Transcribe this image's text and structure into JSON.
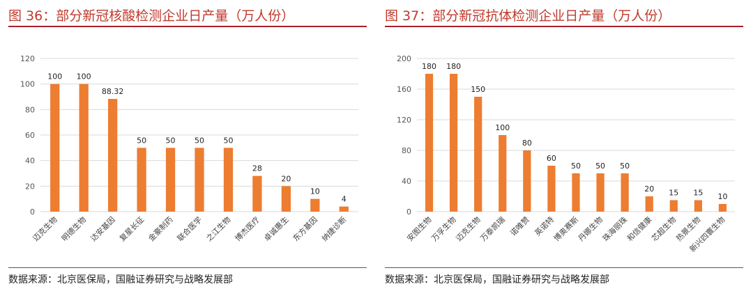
{
  "colors": {
    "bar": "#ed7d31",
    "title": "#c0392b",
    "grid": "#d9d9d9"
  },
  "charts": [
    {
      "title": "图 36：部分新冠核酸检测企业日产量（万人份）",
      "source": "数据来源：北京医保局，国融证券研究与战略发展部",
      "chart_data": {
        "type": "bar",
        "title": "",
        "xlabel": "",
        "ylabel": "",
        "ylim": [
          0,
          120
        ],
        "yticks": [
          "0",
          "20",
          "40",
          "60",
          "80",
          "100",
          "120"
        ],
        "grid": true,
        "legend": "none",
        "categories": [
          "迈克生物",
          "明德生物",
          "达安基因",
          "复星长征",
          "金豪制药",
          "联合医学",
          "之江生物",
          "博杰医疗",
          "卓诚惠生",
          "东方基因",
          "纳捷诊断"
        ],
        "values": [
          100,
          100,
          88.32,
          50,
          50,
          50,
          50,
          28,
          20,
          10,
          4
        ],
        "value_labels": [
          "100",
          "100",
          "88.32",
          "50",
          "50",
          "50",
          "50",
          "28",
          "20",
          "10",
          "4"
        ]
      }
    },
    {
      "title": "图 37：部分新冠抗体检测企业日产量（万人份）",
      "source": "数据来源：北京医保局，国融证券研究与战略发展部",
      "chart_data": {
        "type": "bar",
        "title": "",
        "xlabel": "",
        "ylabel": "",
        "ylim": [
          0,
          200
        ],
        "yticks": [
          "0",
          "40",
          "80",
          "120",
          "160",
          "200"
        ],
        "grid": true,
        "legend": "none",
        "categories": [
          "安图生物",
          "万孚生物",
          "迈克生物",
          "万泰凯瑞",
          "诺唯赞",
          "英诺特",
          "博奥赛斯",
          "丹娜生物",
          "珠海丽珠",
          "和信健康",
          "芯超生物",
          "热景生物",
          "新兴四寰生物"
        ],
        "values": [
          180,
          180,
          150,
          100,
          80,
          60,
          50,
          50,
          50,
          20,
          15,
          15,
          10
        ],
        "value_labels": [
          "180",
          "180",
          "150",
          "100",
          "80",
          "60",
          "50",
          "50",
          "50",
          "20",
          "15",
          "15",
          "10"
        ]
      }
    }
  ]
}
